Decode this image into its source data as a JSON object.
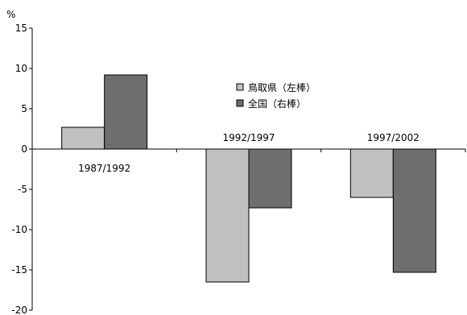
{
  "chart_data": {
    "type": "bar",
    "unit_label": "%",
    "categories": [
      "1987/1992",
      "1992/1997",
      "1997/2002"
    ],
    "series": [
      {
        "name": "鳥取県（左棒）",
        "values": [
          2.7,
          -16.5,
          -6.0
        ],
        "color": "#c0c0c0"
      },
      {
        "name": "全国（右棒）",
        "values": [
          9.2,
          -7.3,
          -15.3
        ],
        "color": "#6e6e6e"
      }
    ],
    "ylim": [
      -20,
      15
    ],
    "yticks": [
      15,
      10,
      5,
      0,
      -5,
      -10,
      -15,
      -20
    ],
    "grid": false,
    "legend_position": "center"
  }
}
